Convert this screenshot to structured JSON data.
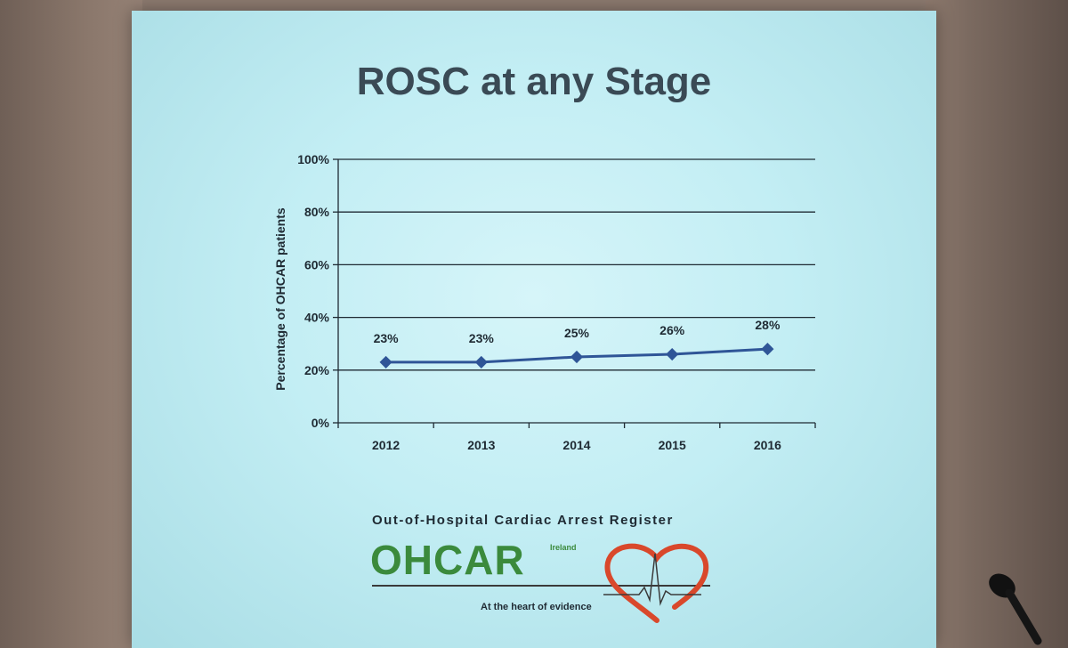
{
  "slide": {
    "title": "ROSC at any Stage"
  },
  "chart_data": {
    "type": "line",
    "title": "ROSC at any Stage",
    "xlabel": "",
    "ylabel": "Percentage of OHCAR patients",
    "categories": [
      "2012",
      "2013",
      "2014",
      "2015",
      "2016"
    ],
    "series": [
      {
        "values": [
          23,
          23,
          25,
          26,
          28
        ],
        "labels": [
          "23%",
          "23%",
          "25%",
          "26%",
          "28%"
        ]
      }
    ],
    "ylim": [
      0,
      100
    ],
    "yticks": [
      "0%",
      "20%",
      "40%",
      "60%",
      "80%",
      "100%"
    ],
    "grid": true,
    "line_color": "#2f5597"
  },
  "logo": {
    "register": "Out-of-Hospital Cardiac Arrest Register",
    "name": "OHCAR",
    "country": "Ireland",
    "tagline": "At the heart of evidence",
    "green": "#3b8a3c",
    "heart_red": "#d9482b"
  }
}
